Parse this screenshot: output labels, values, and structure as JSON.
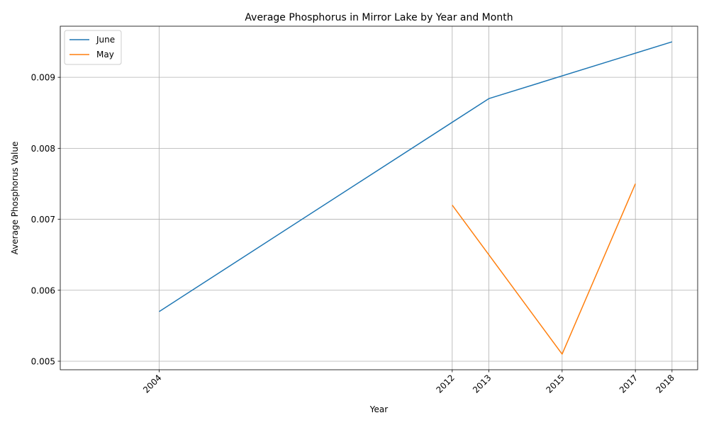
{
  "chart_data": {
    "type": "line",
    "title": "Average Phosphorus in Mirror Lake by Year and Month",
    "xlabel": "Year",
    "ylabel": "Average Phosphorus Value",
    "x_ticks": [
      2004,
      2012,
      2013,
      2015,
      2017,
      2018
    ],
    "y_ticks": [
      "0.005",
      "0.006",
      "0.007",
      "0.008",
      "0.009"
    ],
    "xlim": [
      2001.3,
      2018.7
    ],
    "ylim": [
      0.00488,
      0.00972
    ],
    "grid": true,
    "legend_position": "upper-left",
    "series": [
      {
        "name": "June",
        "color": "#1f77b4",
        "x": [
          2004,
          2013,
          2018
        ],
        "y": [
          0.0057,
          0.0087,
          0.0095
        ]
      },
      {
        "name": "May",
        "color": "#ff7f0e",
        "x": [
          2012,
          2013,
          2015,
          2017
        ],
        "y": [
          0.0072,
          0.0065,
          0.0051,
          0.0075
        ]
      }
    ]
  }
}
